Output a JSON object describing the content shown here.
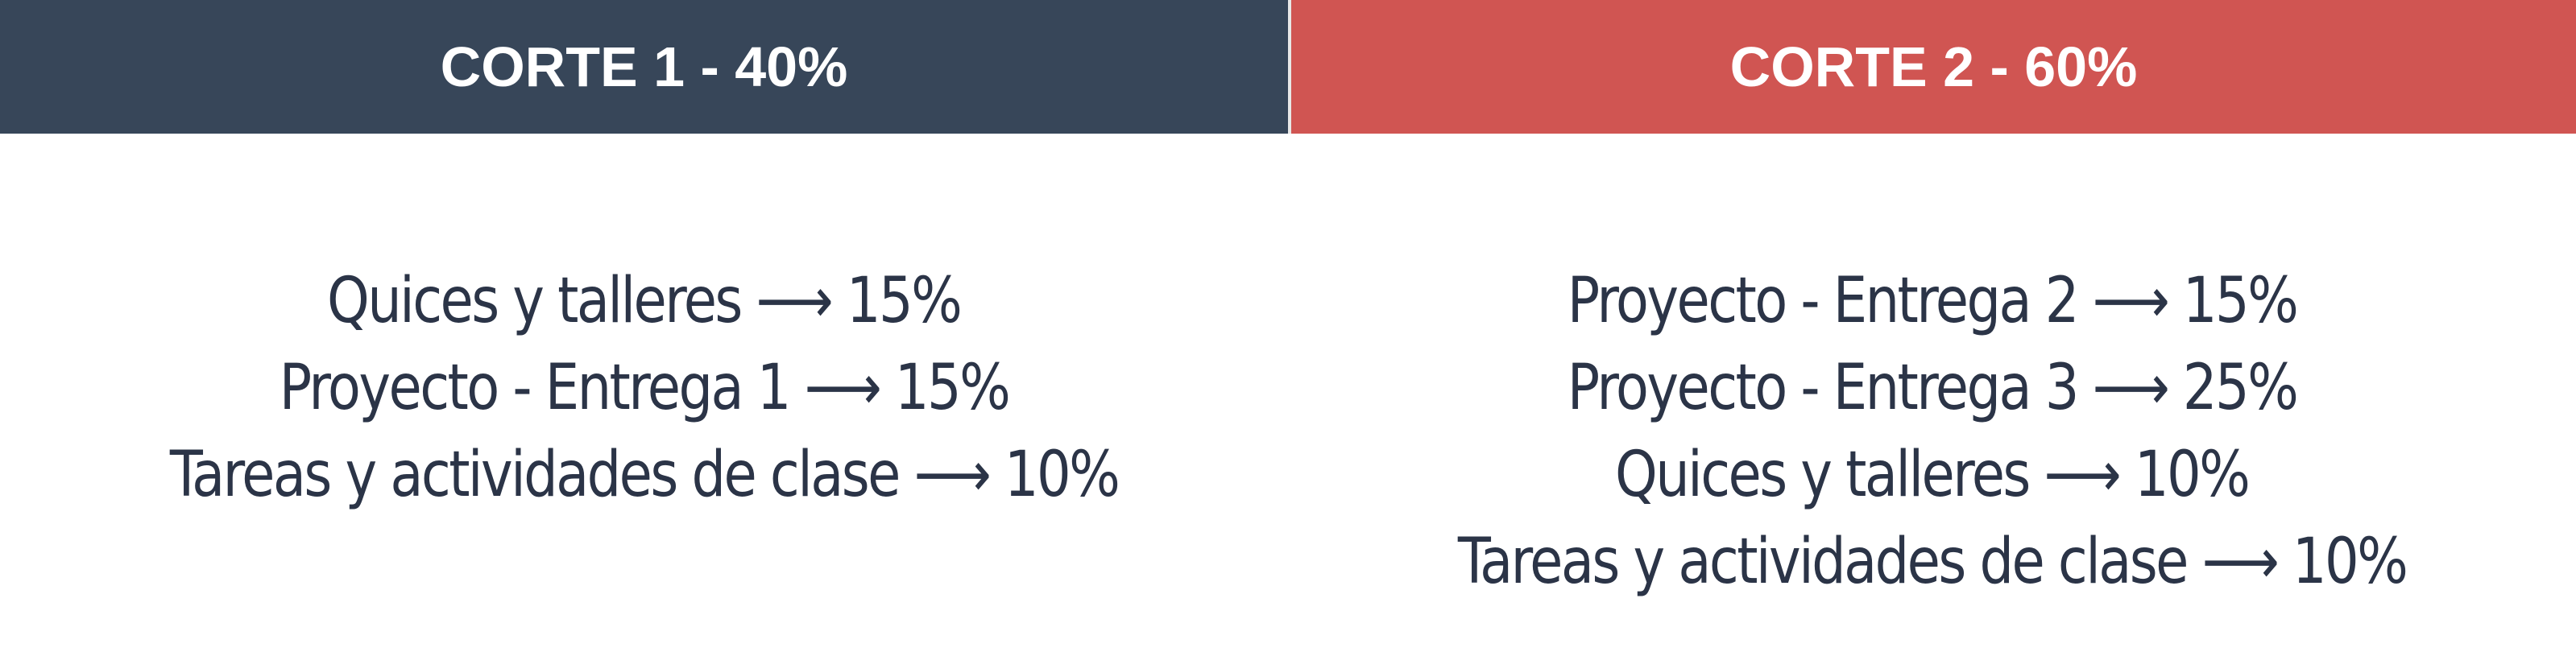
{
  "cuts": [
    {
      "title": "CORTE 1 - 40%",
      "color": "#374659",
      "items": [
        "Quices y talleres ⟶ 15%",
        "Proyecto - Entrega 1 ⟶ 15%",
        "Tareas y actividades de clase ⟶ 10%"
      ]
    },
    {
      "title": "CORTE 2 - 60%",
      "color": "#d05552",
      "items": [
        "Proyecto - Entrega 2 ⟶ 15%",
        "Proyecto - Entrega 3 ⟶ 25%",
        "Quices y talleres ⟶ 10%",
        "Tareas y actividades de clase ⟶ 10%"
      ]
    }
  ]
}
